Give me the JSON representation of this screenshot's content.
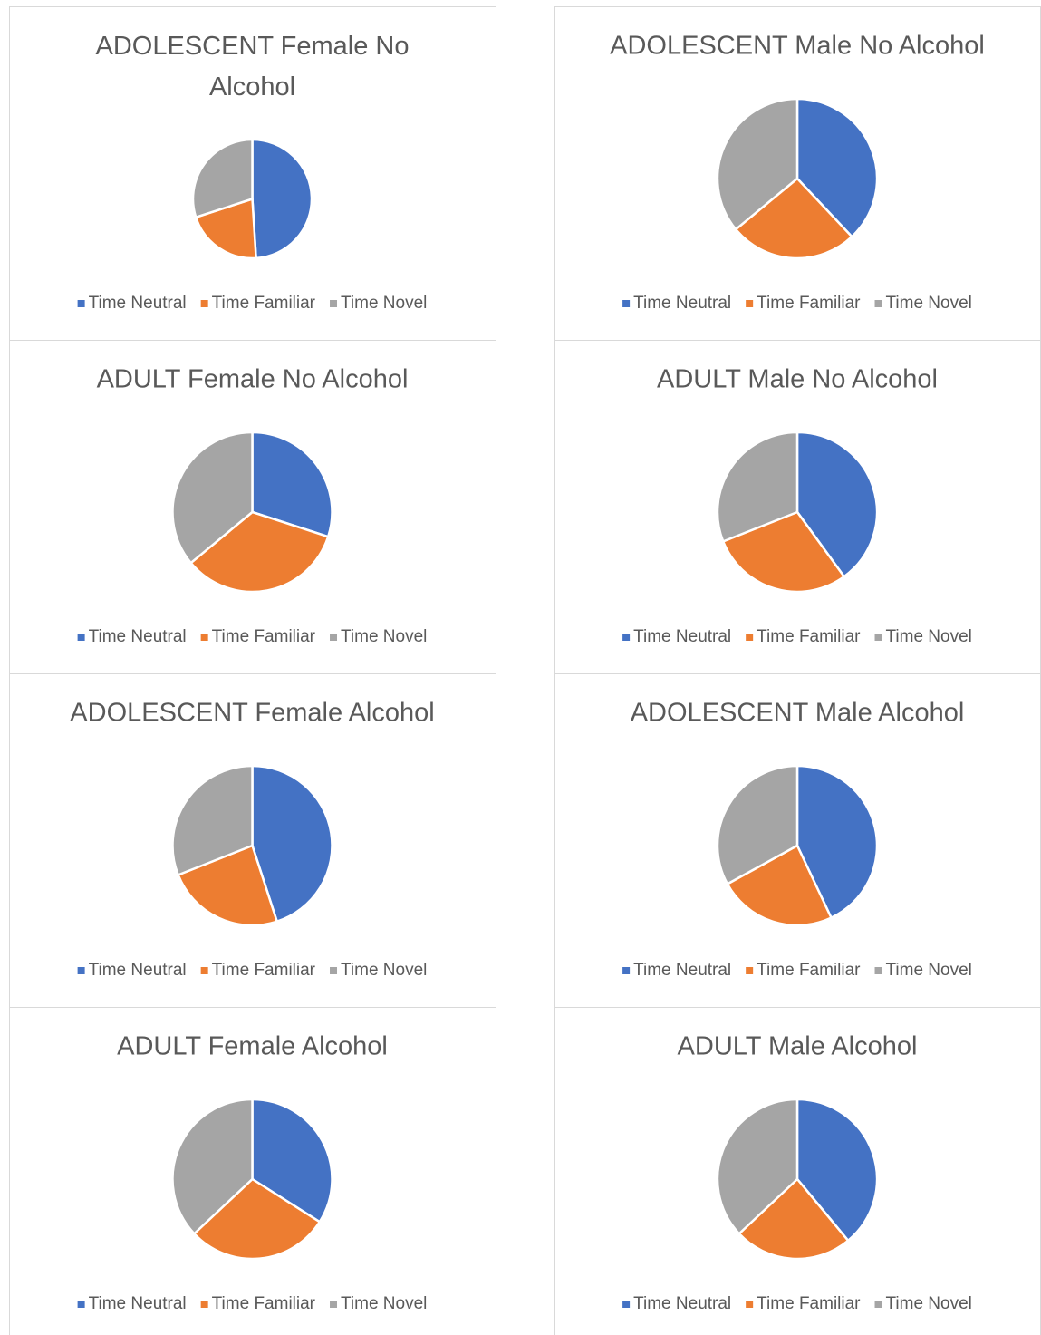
{
  "chart_data": [
    {
      "type": "pie",
      "title": "ADOLESCENT Female No Alcohol",
      "categories": [
        "Time Neutral",
        "Time Familiar",
        "Time Novel"
      ],
      "values": [
        49,
        21,
        30
      ],
      "colors": [
        "#4472c4",
        "#ed7d31",
        "#a5a5a5"
      ]
    },
    {
      "type": "pie",
      "title": "ADOLESCENT Male No Alcohol",
      "categories": [
        "Time Neutral",
        "Time Familiar",
        "Time Novel"
      ],
      "values": [
        38,
        26,
        36
      ],
      "colors": [
        "#4472c4",
        "#ed7d31",
        "#a5a5a5"
      ]
    },
    {
      "type": "pie",
      "title": "ADULT Female No Alcohol",
      "categories": [
        "Time Neutral",
        "Time Familiar",
        "Time Novel"
      ],
      "values": [
        30,
        34,
        36
      ],
      "colors": [
        "#4472c4",
        "#ed7d31",
        "#a5a5a5"
      ]
    },
    {
      "type": "pie",
      "title": "ADULT Male No Alcohol",
      "categories": [
        "Time Neutral",
        "Time Familiar",
        "Time Novel"
      ],
      "values": [
        40,
        29,
        31
      ],
      "colors": [
        "#4472c4",
        "#ed7d31",
        "#a5a5a5"
      ]
    },
    {
      "type": "pie",
      "title": "ADOLESCENT Female Alcohol",
      "categories": [
        "Time Neutral",
        "Time Familiar",
        "Time Novel"
      ],
      "values": [
        45,
        24,
        31
      ],
      "colors": [
        "#4472c4",
        "#ed7d31",
        "#a5a5a5"
      ]
    },
    {
      "type": "pie",
      "title": "ADOLESCENT Male Alcohol",
      "categories": [
        "Time Neutral",
        "Time Familiar",
        "Time Novel"
      ],
      "values": [
        43,
        24,
        33
      ],
      "colors": [
        "#4472c4",
        "#ed7d31",
        "#a5a5a5"
      ]
    },
    {
      "type": "pie",
      "title": "ADULT Female Alcohol",
      "categories": [
        "Time Neutral",
        "Time Familiar",
        "Time Novel"
      ],
      "values": [
        34,
        29,
        37
      ],
      "colors": [
        "#4472c4",
        "#ed7d31",
        "#a5a5a5"
      ]
    },
    {
      "type": "pie",
      "title": "ADULT Male Alcohol",
      "categories": [
        "Time Neutral",
        "Time Familiar",
        "Time Novel"
      ],
      "values": [
        39,
        24,
        37
      ],
      "colors": [
        "#4472c4",
        "#ed7d31",
        "#a5a5a5"
      ]
    }
  ]
}
